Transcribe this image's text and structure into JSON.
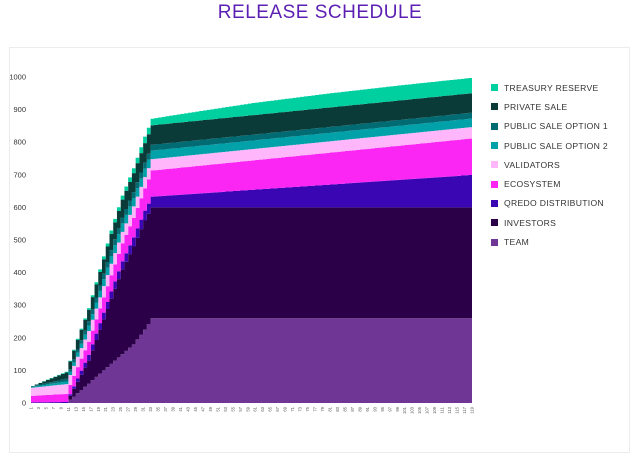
{
  "title": "RELEASE SCHEDULE",
  "chart_data": {
    "type": "area",
    "stacked": true,
    "title": "RELEASE SCHEDULE",
    "xlabel": "",
    "ylabel": "",
    "ylim": [
      0,
      1000
    ],
    "yticks": [
      0,
      100,
      200,
      300,
      400,
      500,
      600,
      700,
      800,
      900,
      1000
    ],
    "x_start": 1,
    "x_end": 119,
    "xtick_labels": [
      "1",
      "3",
      "5",
      "7",
      "9",
      "11",
      "13",
      "15",
      "17",
      "19",
      "21",
      "23",
      "25",
      "27",
      "29",
      "31",
      "33",
      "35",
      "37",
      "39",
      "41",
      "43",
      "45",
      "47",
      "49",
      "51",
      "53",
      "55",
      "57",
      "59",
      "61",
      "63",
      "65",
      "67",
      "69",
      "71",
      "73",
      "75",
      "77",
      "79",
      "81",
      "83",
      "85",
      "87",
      "89",
      "91",
      "93",
      "95",
      "97",
      "99",
      "101",
      "103",
      "105",
      "107",
      "109",
      "111",
      "113",
      "115",
      "117",
      "119"
    ],
    "grid": false,
    "legend_position": "right",
    "legend_order": [
      "TREASURY RESERVE",
      "PRIVATE SALE",
      "PUBLIC SALE OPTION 1",
      "PUBLIC SALE OPTION 2",
      "VALIDATORS",
      "ECOSYSTEM",
      "QREDO DISTRIBUTION",
      "INVESTORS",
      "TEAM"
    ],
    "series": [
      {
        "name": "TEAM",
        "color": "#6f3696",
        "points": [
          [
            1,
            0
          ],
          [
            10,
            0
          ],
          [
            13,
            30
          ],
          [
            16,
            60
          ],
          [
            19,
            90
          ],
          [
            22,
            120
          ],
          [
            25,
            150
          ],
          [
            28,
            180
          ],
          [
            31,
            225
          ],
          [
            33,
            260
          ],
          [
            119,
            260
          ]
        ]
      },
      {
        "name": "INVESTORS",
        "color": "#2c0048",
        "points": [
          [
            1,
            0
          ],
          [
            10,
            0
          ],
          [
            13,
            35
          ],
          [
            16,
            70
          ],
          [
            19,
            135
          ],
          [
            22,
            200
          ],
          [
            25,
            260
          ],
          [
            28,
            300
          ],
          [
            31,
            335
          ],
          [
            33,
            340
          ],
          [
            119,
            340
          ]
        ]
      },
      {
        "name": "QREDO DISTRIBUTION",
        "color": "#3a06b4",
        "points": [
          [
            1,
            2
          ],
          [
            10,
            3
          ],
          [
            13,
            10
          ],
          [
            16,
            18
          ],
          [
            19,
            20
          ],
          [
            22,
            22
          ],
          [
            25,
            25
          ],
          [
            28,
            28
          ],
          [
            31,
            30
          ],
          [
            33,
            33
          ],
          [
            119,
            100
          ]
        ]
      },
      {
        "name": "ECOSYSTEM",
        "color": "#fb26f4",
        "points": [
          [
            1,
            20
          ],
          [
            10,
            25
          ],
          [
            13,
            35
          ],
          [
            16,
            40
          ],
          [
            19,
            45
          ],
          [
            22,
            50
          ],
          [
            25,
            55
          ],
          [
            28,
            60
          ],
          [
            31,
            68
          ],
          [
            33,
            80
          ],
          [
            119,
            112
          ]
        ]
      },
      {
        "name": "VALIDATORS",
        "color": "#ffb6fb",
        "points": [
          [
            1,
            25
          ],
          [
            10,
            30
          ],
          [
            13,
            32
          ],
          [
            16,
            33
          ],
          [
            19,
            34
          ],
          [
            22,
            35
          ],
          [
            25,
            35
          ],
          [
            28,
            35
          ],
          [
            31,
            35
          ],
          [
            33,
            35
          ],
          [
            119,
            35
          ]
        ]
      },
      {
        "name": "PUBLIC SALE OPTION 2",
        "color": "#01a1a9",
        "points": [
          [
            1,
            3
          ],
          [
            10,
            8
          ],
          [
            13,
            12
          ],
          [
            16,
            16
          ],
          [
            19,
            20
          ],
          [
            22,
            24
          ],
          [
            25,
            26
          ],
          [
            28,
            26
          ],
          [
            31,
            26
          ],
          [
            33,
            26
          ],
          [
            119,
            26
          ]
        ]
      },
      {
        "name": "PUBLIC SALE OPTION 1",
        "color": "#006b73",
        "points": [
          [
            1,
            2
          ],
          [
            10,
            8
          ],
          [
            13,
            10
          ],
          [
            16,
            14
          ],
          [
            19,
            16
          ],
          [
            22,
            18
          ],
          [
            25,
            18
          ],
          [
            28,
            18
          ],
          [
            31,
            18
          ],
          [
            33,
            18
          ],
          [
            119,
            18
          ]
        ]
      },
      {
        "name": "PRIVATE SALE",
        "color": "#0a3b39",
        "points": [
          [
            1,
            0
          ],
          [
            10,
            20
          ],
          [
            13,
            30
          ],
          [
            16,
            35
          ],
          [
            19,
            42
          ],
          [
            22,
            50
          ],
          [
            25,
            55
          ],
          [
            28,
            58
          ],
          [
            31,
            60
          ],
          [
            33,
            60
          ],
          [
            119,
            60
          ]
        ]
      },
      {
        "name": "TREASURY RESERVE",
        "color": "#00d0a0",
        "points": [
          [
            1,
            0
          ],
          [
            10,
            2
          ],
          [
            13,
            3
          ],
          [
            16,
            5
          ],
          [
            19,
            8
          ],
          [
            22,
            10
          ],
          [
            25,
            12
          ],
          [
            28,
            15
          ],
          [
            31,
            20
          ],
          [
            33,
            20
          ],
          [
            40,
            25
          ],
          [
            60,
            37
          ],
          [
            80,
            43
          ],
          [
            100,
            46
          ],
          [
            119,
            47
          ]
        ]
      }
    ]
  }
}
